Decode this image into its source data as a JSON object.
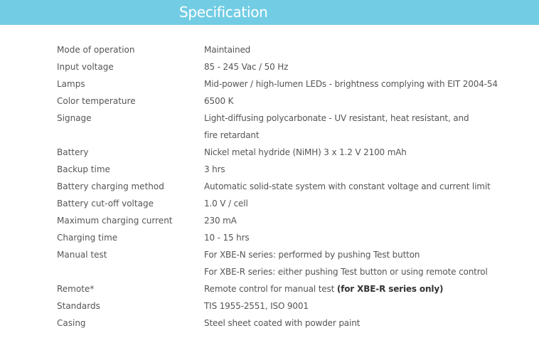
{
  "header": {
    "title": "Specification",
    "background_color": "#72cde4"
  },
  "specs": [
    {
      "label": "Mode of operation",
      "value": "Maintained"
    },
    {
      "label": "Input voltage",
      "value": "85 - 245 Vac / 50 Hz"
    },
    {
      "label": "Lamps",
      "value": "Mid-power / high-lumen LEDs - brightness complying with EIT 2004-54"
    },
    {
      "label": "Color temperature",
      "value": "6500 K"
    },
    {
      "label": "Signage",
      "value": "Light-diffusing polycarbonate - UV resistant, heat resistant, and"
    },
    {
      "label": "",
      "value": "fire retardant"
    },
    {
      "label": "Battery",
      "value": "Nickel metal hydride (NiMH) 3 x 1.2 V 2100 mAh"
    },
    {
      "label": "Backup time",
      "value": "3 hrs"
    },
    {
      "label": "Battery charging method",
      "value": "Automatic solid-state system with constant voltage and current limit"
    },
    {
      "label": "Battery cut-off voltage",
      "value": "1.0 V / cell"
    },
    {
      "label": "Maximum charging current",
      "value": "230 mA"
    },
    {
      "label": "Charging time",
      "value": "10 - 15 hrs"
    },
    {
      "label": "Manual test",
      "value": "For XBE-N series: performed by pushing Test button"
    },
    {
      "label": "",
      "value": "For XBE-R series: either pushing Test button or using remote control"
    },
    {
      "label": "Remote*",
      "value": "Remote control for manual test ",
      "bold": "(for XBE-R series only)"
    },
    {
      "label": "Standards",
      "value": "TIS 1955-2551, ISO 9001"
    },
    {
      "label": "Casing",
      "value": "Steel sheet coated with powder paint"
    }
  ]
}
